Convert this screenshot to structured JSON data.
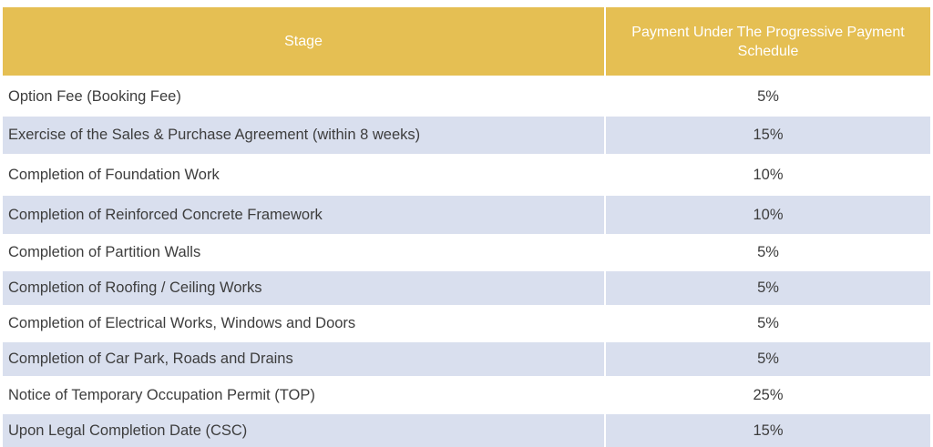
{
  "table": {
    "headers": {
      "stage": "Stage",
      "payment": "Payment Under The Progressive Payment Schedule"
    },
    "rows": [
      {
        "stage": "Option Fee (Booking Fee)",
        "payment": "5%"
      },
      {
        "stage": "Exercise of the Sales & Purchase Agreement (within 8 weeks)",
        "payment": "15%"
      },
      {
        "stage": "Completion of Foundation Work",
        "payment": "10%"
      },
      {
        "stage": "Completion of Reinforced Concrete Framework",
        "payment": "10%"
      },
      {
        "stage": "Completion of Partition Walls",
        "payment": "5%"
      },
      {
        "stage": "Completion of Roofing / Ceiling Works",
        "payment": "5%"
      },
      {
        "stage": "Completion of Electrical Works, Windows and Doors",
        "payment": "5%"
      },
      {
        "stage": "Completion of Car Park, Roads and Drains",
        "payment": "5%"
      },
      {
        "stage": "Notice of Temporary Occupation Permit (TOP)",
        "payment": "25%"
      },
      {
        "stage": "Upon Legal Completion Date (CSC)",
        "payment": "15%"
      }
    ]
  },
  "colors": {
    "header_bg": "#e5bf53",
    "header_text": "#ffffff",
    "stripe_bg": "#d9dfee",
    "row_bg": "#ffffff",
    "body_text": "#3d3d3d"
  }
}
